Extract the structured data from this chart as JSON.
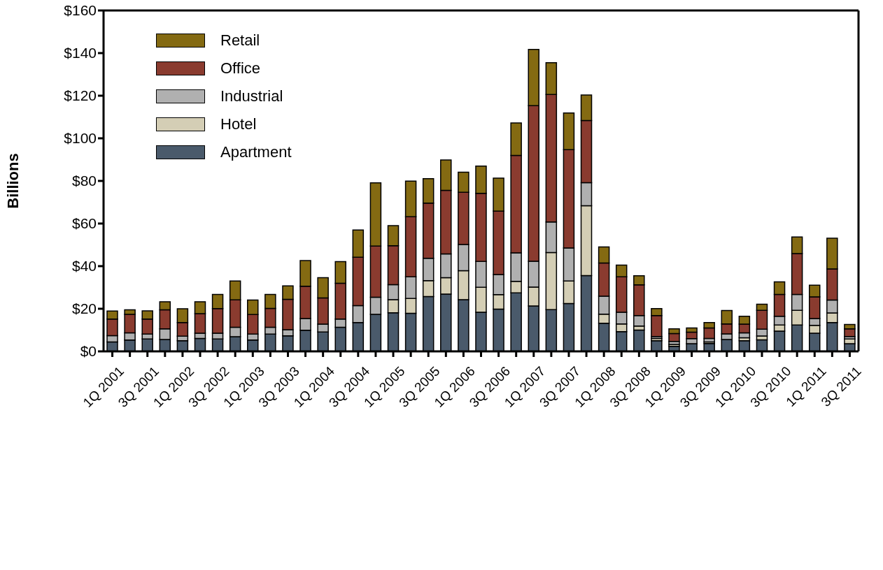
{
  "chart_data": {
    "type": "bar",
    "stacked": true,
    "ylabel": "Billions",
    "categories": [
      "1Q 2001",
      null,
      "3Q 2001",
      null,
      "1Q 2002",
      null,
      "3Q 2002",
      null,
      "1Q 2003",
      null,
      "3Q 2003",
      null,
      "1Q 2004",
      null,
      "3Q 2004",
      null,
      "1Q 2005",
      null,
      "3Q 2005",
      null,
      "1Q 2006",
      null,
      "3Q 2006",
      null,
      "1Q 2007",
      null,
      "3Q 2007",
      null,
      "1Q 2008",
      null,
      "3Q 2008",
      null,
      "1Q 2009",
      null,
      "3Q 2009",
      null,
      "1Q 2010",
      null,
      "3Q 2010",
      null,
      "1Q 2011",
      null,
      "3Q 2011"
    ],
    "series": [
      {
        "name": "Apartment",
        "color": "#4a5a6b",
        "values": [
          4.4,
          5.3,
          5.8,
          5.6,
          5.0,
          6.1,
          5.8,
          6.9,
          5.3,
          8.1,
          7.3,
          9.9,
          9.1,
          11.3,
          13.5,
          17.4,
          18.1,
          17.9,
          25.7,
          26.9,
          24.3,
          18.4,
          19.8,
          27.5,
          21.3,
          19.6,
          22.5,
          35.6,
          13.2,
          9.3,
          10.0,
          5.0,
          2.4,
          3.6,
          3.7,
          5.6,
          5.0,
          5.4,
          9.5,
          12.4,
          8.5,
          13.5,
          3.6
        ]
      },
      {
        "name": "Hotel",
        "color": "#d4ceb5",
        "values": [
          0,
          0,
          0,
          0,
          0,
          0,
          0,
          0,
          0,
          0,
          0,
          0,
          0,
          0,
          0,
          0,
          6.2,
          6.9,
          7.5,
          7.7,
          13.6,
          11.7,
          6.8,
          5.4,
          8.9,
          26.8,
          10.5,
          32.8,
          4.3,
          3.6,
          1.9,
          1.1,
          0.9,
          null,
          0.7,
          null,
          1.4,
          1.8,
          2.9,
          6.9,
          3.7,
          4.5,
          2.2
        ]
      },
      {
        "name": "Industrial",
        "color": "#b0b0b0",
        "values": [
          3.0,
          3.4,
          2.3,
          5.0,
          2.1,
          2.4,
          2.7,
          4.4,
          2.8,
          3.2,
          2.9,
          5.5,
          3.7,
          3.9,
          8.0,
          8.0,
          7.0,
          10.2,
          10.5,
          11.1,
          12.3,
          12.1,
          9.5,
          13.3,
          12.1,
          14.3,
          15.5,
          10.8,
          8.4,
          5.5,
          4.9,
          0.9,
          1.4,
          2.4,
          1.7,
          2.6,
          2.3,
          3.2,
          4.1,
          7.4,
          3.2,
          6.1,
          1.2
        ]
      },
      {
        "name": "Office",
        "color": "#8a3b2f",
        "values": [
          7.8,
          8.7,
          7.1,
          8.9,
          6.4,
          9.2,
          11.6,
          12.9,
          9.2,
          8.9,
          14.2,
          15.2,
          12.3,
          16.8,
          22.7,
          24.0,
          18.3,
          28.2,
          25.9,
          29.9,
          24.5,
          32.0,
          29.7,
          45.8,
          73.0,
          59.9,
          46.2,
          29.2,
          15.6,
          16.6,
          14.4,
          9.8,
          3.7,
          3.0,
          4.9,
          4.7,
          4.1,
          8.9,
          10.2,
          19.2,
          10.2,
          14.6,
          3.6
        ]
      },
      {
        "name": "Retail",
        "color": "#846a12",
        "values": [
          3.7,
          2.1,
          3.8,
          3.8,
          6.5,
          5.6,
          6.6,
          8.8,
          6.8,
          6.5,
          6.3,
          12.0,
          9.5,
          10.1,
          12.8,
          29.7,
          9.4,
          16.7,
          11.5,
          14.2,
          9.4,
          12.8,
          15.5,
          15.2,
          26.4,
          14.9,
          17.2,
          11.9,
          7.5,
          5.5,
          4.3,
          3.3,
          2.2,
          2.0,
          2.5,
          6.3,
          3.7,
          2.8,
          5.9,
          7.8,
          5.5,
          14.4,
          2.0
        ]
      }
    ],
    "ylim": [
      0,
      160
    ],
    "yticks": [
      {
        "value": 0,
        "label": "$0"
      },
      {
        "value": 20,
        "label": "$20"
      },
      {
        "value": 40,
        "label": "$40"
      },
      {
        "value": 60,
        "label": "$60"
      },
      {
        "value": 80,
        "label": "$80"
      },
      {
        "value": 100,
        "label": "$100"
      },
      {
        "value": 120,
        "label": "$120"
      },
      {
        "value": 140,
        "label": "$140"
      },
      {
        "value": 160,
        "label": "$160"
      }
    ],
    "legend": "top left"
  }
}
